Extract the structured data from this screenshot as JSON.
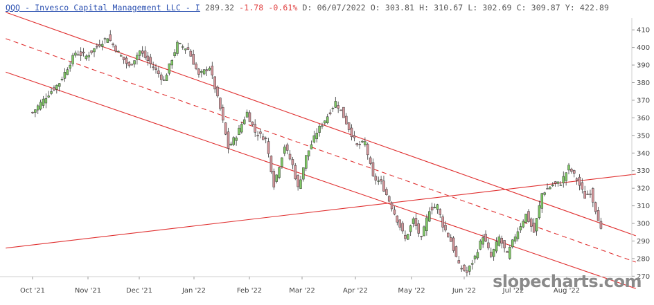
{
  "header": {
    "ticker": "QQQ - Invesco Capital Management LLC - I",
    "last": "289.32",
    "change": "-1.78",
    "change_pct": "-0.61%",
    "date": "D: 06/07/2022",
    "open": "O: 303.81",
    "high": "H: 310.67",
    "low": "L: 302.69",
    "close": "C: 309.87",
    "y": "Y: 422.89"
  },
  "watermark": "slopecharts.com",
  "colors": {
    "up": "#7fc865",
    "down": "#d4959a",
    "outline": "#333333",
    "trendline": "#e03030",
    "change_negative": "#e04040",
    "ticker_link": "#2a4fb0"
  },
  "chart_data": {
    "type": "candlestick",
    "y_axis": {
      "ticks": [
        410,
        400,
        390,
        380,
        370,
        360,
        350,
        340,
        330,
        320,
        310,
        300,
        290,
        280,
        270
      ],
      "ylim": [
        267,
        414
      ],
      "side": "right"
    },
    "x_axis": {
      "labels": [
        "Oct '21",
        "Nov '21",
        "Dec '21",
        "Jan '22",
        "Feb '22",
        "Mar '22",
        "Apr '22",
        "May '22",
        "Jun '22",
        "Jul '22",
        "Aug '22"
      ]
    },
    "grid": false,
    "candle_key_points": [
      {
        "t": 0,
        "v": 363
      },
      {
        "t": 5,
        "v": 372
      },
      {
        "t": 10,
        "v": 380
      },
      {
        "t": 16,
        "v": 397
      },
      {
        "t": 20,
        "v": 395
      },
      {
        "t": 28,
        "v": 406
      },
      {
        "t": 32,
        "v": 397
      },
      {
        "t": 36,
        "v": 389
      },
      {
        "t": 40,
        "v": 398
      },
      {
        "t": 46,
        "v": 387
      },
      {
        "t": 49,
        "v": 381
      },
      {
        "t": 54,
        "v": 402
      },
      {
        "t": 58,
        "v": 399
      },
      {
        "t": 62,
        "v": 384
      },
      {
        "t": 66,
        "v": 389
      },
      {
        "t": 70,
        "v": 365
      },
      {
        "t": 73,
        "v": 343
      },
      {
        "t": 76,
        "v": 350
      },
      {
        "t": 80,
        "v": 363
      },
      {
        "t": 83,
        "v": 352
      },
      {
        "t": 87,
        "v": 348
      },
      {
        "t": 90,
        "v": 322
      },
      {
        "t": 94,
        "v": 344
      },
      {
        "t": 97,
        "v": 333
      },
      {
        "t": 99,
        "v": 320
      },
      {
        "t": 102,
        "v": 338
      },
      {
        "t": 106,
        "v": 352
      },
      {
        "t": 110,
        "v": 361
      },
      {
        "t": 113,
        "v": 369
      },
      {
        "t": 115,
        "v": 364
      },
      {
        "t": 118,
        "v": 354
      },
      {
        "t": 121,
        "v": 344
      },
      {
        "t": 124,
        "v": 346
      },
      {
        "t": 127,
        "v": 326
      },
      {
        "t": 130,
        "v": 323
      },
      {
        "t": 133,
        "v": 313
      },
      {
        "t": 136,
        "v": 302
      },
      {
        "t": 139,
        "v": 291
      },
      {
        "t": 142,
        "v": 302
      },
      {
        "t": 145,
        "v": 291
      },
      {
        "t": 148,
        "v": 308
      },
      {
        "t": 151,
        "v": 310
      },
      {
        "t": 153,
        "v": 299
      },
      {
        "t": 156,
        "v": 290
      },
      {
        "t": 159,
        "v": 276
      },
      {
        "t": 162,
        "v": 272
      },
      {
        "t": 165,
        "v": 281
      },
      {
        "t": 168,
        "v": 293
      },
      {
        "t": 171,
        "v": 281
      },
      {
        "t": 174,
        "v": 292
      },
      {
        "t": 177,
        "v": 282
      },
      {
        "t": 180,
        "v": 293
      },
      {
        "t": 184,
        "v": 305
      },
      {
        "t": 187,
        "v": 295
      },
      {
        "t": 190,
        "v": 317
      },
      {
        "t": 194,
        "v": 322
      },
      {
        "t": 197,
        "v": 323
      },
      {
        "t": 200,
        "v": 332
      },
      {
        "t": 203,
        "v": 325
      },
      {
        "t": 206,
        "v": 315
      },
      {
        "t": 208,
        "v": 318
      },
      {
        "t": 211,
        "v": 303
      },
      {
        "t": 212,
        "v": 296
      }
    ],
    "trendlines": [
      {
        "style": "solid",
        "points": [
          [
            -10,
            420
          ],
          [
            225,
            293
          ]
        ]
      },
      {
        "style": "solid",
        "points": [
          [
            -10,
            386
          ],
          [
            225,
            263
          ]
        ]
      },
      {
        "style": "dashed",
        "points": [
          [
            -10,
            405
          ],
          [
            225,
            278
          ]
        ]
      },
      {
        "style": "solid",
        "points": [
          [
            -10,
            286
          ],
          [
            225,
            328
          ]
        ]
      }
    ]
  }
}
